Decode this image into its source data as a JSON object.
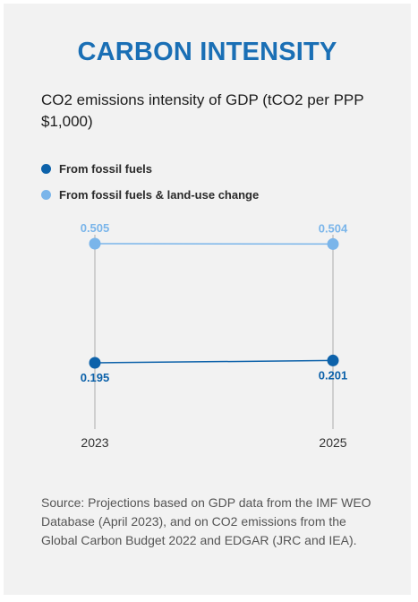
{
  "header": {
    "title": "CARBON INTENSITY",
    "subtitle": "CO2 emissions intensity of GDP (tCO2 per PPP $1,000)"
  },
  "colors": {
    "background": "#f2f2f2",
    "title": "#1a6fb5",
    "series_fossil": "#0d62aa",
    "series_landuse": "#7ab5ea",
    "axis_line": "#cfcfcf"
  },
  "chart_data": {
    "type": "line",
    "title": "CARBON INTENSITY",
    "subtitle": "CO2 emissions intensity of GDP (tCO2 per PPP $1,000)",
    "x": [
      "2023",
      "2025"
    ],
    "series": [
      {
        "name": "From fossil fuels",
        "values": [
          0.195,
          0.201
        ],
        "labels": [
          "0.195",
          "0.201"
        ],
        "color": "#0d62aa"
      },
      {
        "name": "From fossil fuels & land-use change",
        "values": [
          0.505,
          0.504
        ],
        "labels": [
          "0.505",
          "0.504"
        ],
        "color": "#7ab5ea"
      }
    ],
    "legend_position": "top-left",
    "grid": false
  },
  "footer": {
    "source": "Source: Projections based on GDP data from the IMF WEO Database (April 2023), and on CO2 emissions from the Global Carbon Budget 2022 and EDGAR (JRC and IEA)."
  }
}
